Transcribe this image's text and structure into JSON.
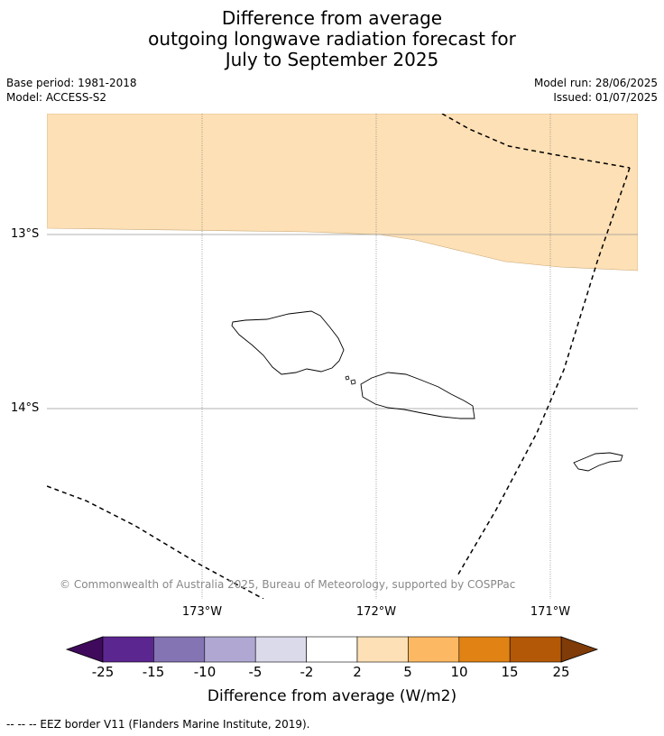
{
  "title": {
    "line1": "Difference from average",
    "line2": "outgoing longwave radiation forecast for",
    "line3": "July to September 2025"
  },
  "meta": {
    "base_period": "Base period: 1981-2018",
    "model": "Model: ACCESS-S2",
    "model_run": "Model run: 28/06/2025",
    "issued": "Issued: 01/07/2025"
  },
  "map": {
    "lat_labels": [
      "13°S",
      "14°S"
    ],
    "lon_labels": [
      "173°W",
      "172°W",
      "171°W"
    ],
    "anomaly_region_color": "#fde0b5",
    "copyright": "© Commonwealth of Australia 2025, Bureau of Meteorology, supported by COSPPac"
  },
  "colorbar": {
    "ticks": [
      "-25",
      "-15",
      "-10",
      "-5",
      "-2",
      "2",
      "5",
      "10",
      "15",
      "25"
    ],
    "colors": [
      "#3f0a5c",
      "#5b2690",
      "#8474b3",
      "#b0a8d3",
      "#dadaeb",
      "#ffffff",
      "#fde0b5",
      "#fdb863",
      "#e08214",
      "#b35806",
      "#7f3b08"
    ],
    "label": "Difference from average (W/m2)"
  },
  "legend_note": "--  --  -- EEZ border V11 (Flanders Marine Institute, 2019)."
}
